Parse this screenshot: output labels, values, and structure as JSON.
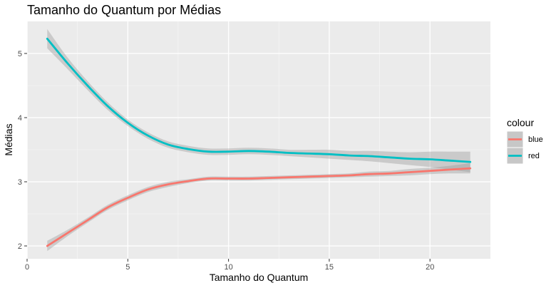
{
  "chart_data": {
    "type": "line",
    "title": "Tamanho do Quantum por Médias",
    "xlabel": "Tamanho do Quantum",
    "ylabel": "Médias",
    "xlim": [
      0,
      23
    ],
    "ylim": [
      1.8,
      5.5
    ],
    "x_ticks": [
      0,
      5,
      10,
      15,
      20
    ],
    "y_ticks": [
      2,
      3,
      4,
      5
    ],
    "grid": true,
    "legend": {
      "title": "colour",
      "position": "right"
    },
    "series": [
      {
        "name": "blue",
        "color": "#F8766D",
        "x": [
          1,
          2,
          3,
          4,
          5,
          6,
          7,
          8,
          9,
          10,
          11,
          12,
          13,
          14,
          15,
          16,
          17,
          18,
          19,
          20,
          21,
          22
        ],
        "values": [
          2.0,
          2.2,
          2.4,
          2.6,
          2.75,
          2.88,
          2.96,
          3.01,
          3.05,
          3.05,
          3.05,
          3.06,
          3.07,
          3.08,
          3.09,
          3.1,
          3.12,
          3.13,
          3.15,
          3.17,
          3.19,
          3.21
        ],
        "ci_lower": [
          1.92,
          2.15,
          2.36,
          2.56,
          2.71,
          2.84,
          2.92,
          2.98,
          3.02,
          3.02,
          3.02,
          3.03,
          3.04,
          3.05,
          3.06,
          3.07,
          3.08,
          3.09,
          3.1,
          3.12,
          3.13,
          3.13
        ],
        "ci_upper": [
          2.08,
          2.25,
          2.44,
          2.64,
          2.79,
          2.92,
          3.0,
          3.04,
          3.08,
          3.08,
          3.08,
          3.09,
          3.1,
          3.11,
          3.12,
          3.13,
          3.16,
          3.17,
          3.2,
          3.22,
          3.25,
          3.29
        ]
      },
      {
        "name": "red",
        "color": "#00BFC4",
        "x": [
          1,
          2,
          3,
          4,
          5,
          6,
          7,
          8,
          9,
          10,
          11,
          12,
          13,
          14,
          15,
          16,
          17,
          18,
          19,
          20,
          21,
          22
        ],
        "values": [
          5.23,
          4.85,
          4.5,
          4.18,
          3.92,
          3.72,
          3.58,
          3.51,
          3.47,
          3.47,
          3.48,
          3.47,
          3.45,
          3.44,
          3.43,
          3.41,
          3.4,
          3.38,
          3.36,
          3.35,
          3.33,
          3.31
        ],
        "ci_lower": [
          5.08,
          4.76,
          4.43,
          4.12,
          3.87,
          3.67,
          3.53,
          3.46,
          3.42,
          3.42,
          3.43,
          3.42,
          3.4,
          3.38,
          3.36,
          3.34,
          3.32,
          3.29,
          3.26,
          3.23,
          3.19,
          3.15
        ],
        "ci_upper": [
          5.38,
          4.94,
          4.57,
          4.24,
          3.97,
          3.77,
          3.63,
          3.56,
          3.52,
          3.52,
          3.53,
          3.52,
          3.5,
          3.5,
          3.5,
          3.48,
          3.48,
          3.47,
          3.46,
          3.47,
          3.47,
          3.47
        ]
      }
    ]
  }
}
